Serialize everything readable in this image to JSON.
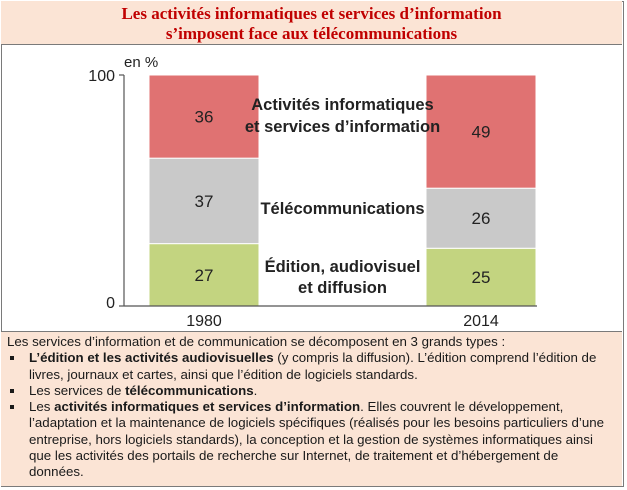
{
  "title": {
    "line1": "Les activités informatiques et services d’information",
    "line2": "s’imposent face aux télécommunications"
  },
  "chart_data": {
    "type": "bar",
    "stacked": true,
    "unit_label": "en %",
    "categories": [
      "1980",
      "2014"
    ],
    "ylim": [
      0,
      100
    ],
    "yticks": [
      0,
      100
    ],
    "grid": false,
    "legend": "labels placed between bars",
    "series": [
      {
        "name": "Édition, audiovisuel et diffusion",
        "label_lines": [
          "Édition, audiovisuel",
          "et diffusion"
        ],
        "values": [
          27,
          25
        ],
        "color": "#c3d480"
      },
      {
        "name": "Télécommunications",
        "label_lines": [
          "Télécommunications"
        ],
        "values": [
          37,
          26
        ],
        "color": "#c9c9c9"
      },
      {
        "name": "Activités informatiques et services d’information",
        "label_lines": [
          "Activités informatiques",
          "et services d’information"
        ],
        "values": [
          36,
          49
        ],
        "color": "#e07272"
      }
    ]
  },
  "notes": {
    "intro": "Les services d’information et de communication se décomposent en 3 grands types :",
    "items": [
      {
        "bold": "L’édition et les activités audiovisuelles",
        "rest": " (y compris la diffusion). L’édition comprend l’édition de livres, journaux et cartes, ainsi que l’édition de logiciels standards."
      },
      {
        "prefix": "Les services de ",
        "bold": "télécommunications",
        "rest": "."
      },
      {
        "prefix": "Les ",
        "bold": "activités informatiques et services d’information",
        "rest": ". Elles couvrent le développement, l’adaptation et la maintenance de logiciels spécifiques (réalisés pour les besoins particuliers d’une entreprise, hors logiciels standards), la conception et la gestion de systèmes informatiques ainsi que les activités des portails de recherche sur Internet, de traitement et d’hébergement de données."
      }
    ]
  }
}
